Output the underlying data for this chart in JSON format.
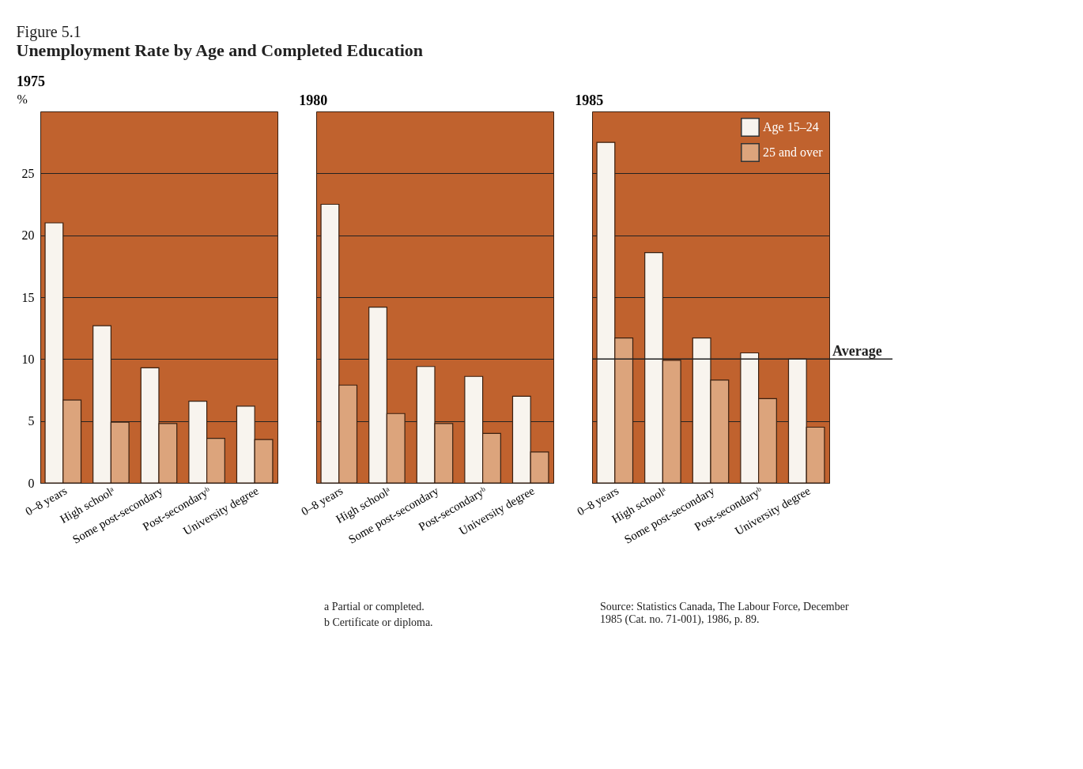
{
  "chart_data": [
    {
      "type": "bar",
      "title": "1975",
      "ylabel": "%",
      "categories": [
        "0–8 years",
        "High schoolᵃ",
        "Some post-secondary",
        "Post-secondaryᵇ",
        "University degree"
      ],
      "series": [
        {
          "color": "#f8f4ee",
          "values": [
            21.0,
            12.7,
            9.3,
            6.6,
            6.2
          ]
        },
        {
          "color": "#dca47c",
          "values": [
            6.7,
            4.9,
            4.8,
            3.6,
            3.5
          ]
        }
      ],
      "ylim": [
        0,
        30
      ],
      "yticks": [
        0,
        5,
        10,
        15,
        20,
        25
      ],
      "grid": "y",
      "annotations": [
        "Figure 5.1",
        "Unemployment Rate by Age and Completed Education"
      ]
    },
    {
      "type": "bar",
      "title": "1980",
      "categories": [
        "0–8 years",
        "High schoolᵃ",
        "Some post-secondary",
        "Post-secondaryᵇ",
        "University degree"
      ],
      "series": [
        {
          "color": "#f8f4ee",
          "values": [
            22.5,
            14.2,
            9.4,
            8.6,
            7.0
          ]
        },
        {
          "color": "#dca47c",
          "values": [
            7.9,
            5.6,
            4.8,
            4.0,
            2.5
          ]
        }
      ],
      "ylim": [
        0,
        30
      ],
      "yticks": [
        0,
        5,
        10,
        15,
        20,
        25
      ],
      "grid": "y",
      "tick_labels": "x",
      "annotations": [
        "a  Partial or completed.",
        "b  Certificate or diploma."
      ]
    },
    {
      "type": "bar",
      "title": "1985",
      "categories": [
        "0–8 years",
        "High schoolᵃ",
        "Some post-secondary",
        "Post-secondaryᵇ",
        "University degree"
      ],
      "series": [
        {
          "name": "Age 15–24",
          "color": "#f8f4ee",
          "values": [
            27.5,
            18.6,
            11.7,
            10.5,
            10.0
          ]
        },
        {
          "name": "25 and over",
          "color": "#dca47c",
          "values": [
            11.7,
            9.9,
            8.3,
            6.8,
            4.5
          ]
        }
      ],
      "ylim": [
        0,
        30
      ],
      "yticks": [
        0,
        5,
        10,
        15,
        20,
        25
      ],
      "grid": "y",
      "legend": "top right",
      "tick_labels": "x",
      "ref_lines": [
        {
          "axis": "y",
          "value": 10,
          "label": "Average"
        }
      ],
      "annotations": [
        "Source:   Statistics Canada, The Labour Force, December\n1985 (Cat. no. 71-001), 1986, p. 89."
      ]
    }
  ]
}
